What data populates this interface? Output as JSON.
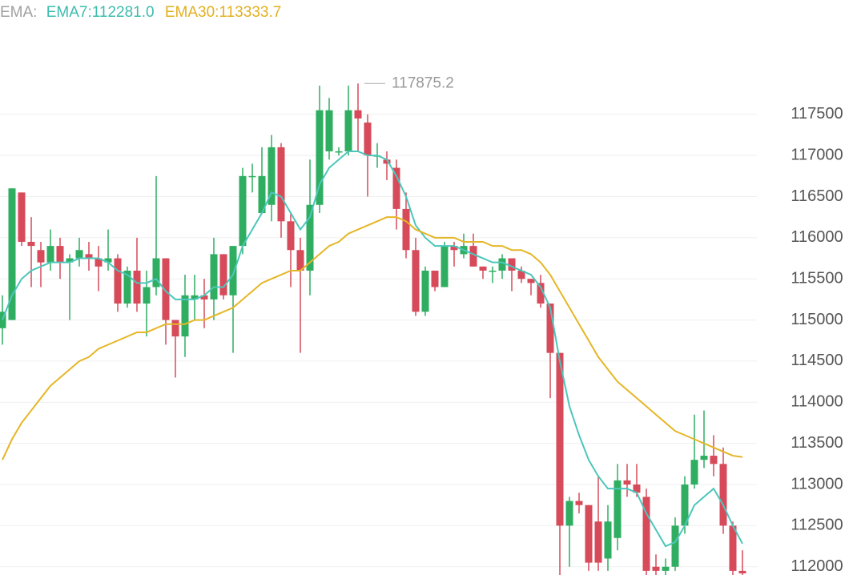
{
  "chart_data": {
    "type": "candlestick",
    "legend": {
      "label": "EMA:",
      "items": [
        "EMA7:112281.0",
        "EMA30:113333.7"
      ]
    },
    "up_color": "#2fae62",
    "down_color": "#d64a5a",
    "open": [
      114900,
      115000,
      116550,
      115950,
      115850,
      115700,
      115900,
      115700,
      115750,
      115800,
      115750,
      115700,
      115750,
      115200,
      115600,
      115200,
      115400,
      115750,
      115000,
      114800,
      115250,
      115300,
      115250,
      115800,
      115300,
      115900,
      116750,
      116300,
      116400,
      117100,
      116200,
      115850,
      115600,
      116400,
      117050,
      117050,
      117050,
      117550,
      117400,
      117000,
      116950,
      116850,
      116350,
      115850,
      115100,
      115600,
      115400,
      115900,
      115800,
      115900,
      115650,
      115600,
      115600,
      115750,
      115600,
      115500,
      115450,
      115200,
      114600,
      112500,
      112800,
      112750,
      112550,
      112100,
      112350,
      113050,
      113000,
      112850,
      112000,
      111950,
      112000,
      112500,
      113000,
      113300,
      113350,
      113250,
      112500,
      111950
    ],
    "high": [
      115300,
      116600,
      116550,
      116250,
      115950,
      116100,
      116000,
      115800,
      116000,
      115950,
      115900,
      116100,
      115800,
      115650,
      116000,
      115600,
      116750,
      115750,
      115000,
      115550,
      115550,
      115500,
      116000,
      115800,
      115900,
      116850,
      116900,
      117100,
      117250,
      117150,
      116300,
      116000,
      116950,
      117850,
      117700,
      117100,
      117850,
      117875.2,
      117500,
      117150,
      117050,
      116950,
      116550,
      116000,
      115650,
      115600,
      115950,
      115950,
      116050,
      116050,
      115650,
      115650,
      115800,
      115750,
      115650,
      115500,
      115550,
      115200,
      114600,
      112850,
      112900,
      112750,
      113100,
      112750,
      113250,
      113250,
      113250,
      112950,
      112150,
      112100,
      112600,
      113100,
      113850,
      113900,
      113600,
      113450,
      112550,
      112200
    ],
    "low": [
      114700,
      115000,
      115900,
      115400,
      115400,
      115600,
      115500,
      115000,
      115650,
      115600,
      115350,
      115600,
      115100,
      115150,
      115100,
      114800,
      115300,
      114700,
      114300,
      114550,
      115000,
      114900,
      115000,
      115250,
      114600,
      115800,
      116550,
      116300,
      116200,
      116000,
      115400,
      114600,
      115300,
      116300,
      116950,
      117000,
      117000,
      117050,
      116500,
      116850,
      116700,
      116100,
      115750,
      115050,
      115050,
      115350,
      115400,
      115650,
      115750,
      115650,
      115500,
      115450,
      115500,
      115350,
      115450,
      115300,
      115150,
      114050,
      111900,
      112000,
      112650,
      111950,
      111950,
      111950,
      112200,
      112850,
      112850,
      111900,
      111900,
      111900,
      111950,
      112400,
      112950,
      113200,
      113100,
      112400,
      111900,
      111900
    ],
    "close": [
      115100,
      116600,
      115950,
      115900,
      115700,
      115900,
      115700,
      115750,
      115850,
      115750,
      115650,
      115750,
      115200,
      115600,
      115200,
      115400,
      115750,
      115000,
      114800,
      115300,
      115300,
      115250,
      115800,
      115300,
      115900,
      116750,
      116750,
      116750,
      117100,
      116200,
      115850,
      115600,
      116400,
      117550,
      117550,
      117050,
      117550,
      117450,
      117000,
      117000,
      116900,
      116350,
      115850,
      115100,
      115600,
      115400,
      115900,
      115850,
      115900,
      115650,
      115600,
      115600,
      115750,
      115600,
      115500,
      115450,
      115200,
      114600,
      112500,
      112800,
      112750,
      112050,
      112050,
      112550,
      113050,
      113000,
      112900,
      111950,
      111950,
      112000,
      112500,
      113000,
      113300,
      113350,
      113250,
      112500,
      111950,
      111920
    ],
    "series": [
      {
        "color": "#4cc6bb",
        "values": [
          115000,
          115300,
          115500,
          115600,
          115650,
          115700,
          115700,
          115700,
          115750,
          115750,
          115750,
          115700,
          115600,
          115550,
          115450,
          115450,
          115500,
          115350,
          115250,
          115250,
          115250,
          115300,
          115400,
          115400,
          115550,
          115900,
          116100,
          116300,
          116550,
          116500,
          116300,
          116100,
          116250,
          116650,
          116850,
          116950,
          117050,
          117050,
          117000,
          117000,
          116950,
          116750,
          116500,
          116150,
          116000,
          115900,
          115900,
          115900,
          115850,
          115800,
          115750,
          115700,
          115700,
          115650,
          115600,
          115550,
          115400,
          115150,
          114500,
          113950,
          113600,
          113300,
          113100,
          112950,
          112950,
          112950,
          112900,
          112650,
          112450,
          112250,
          112300,
          112500,
          112750,
          112850,
          112950,
          112750,
          112500,
          112281
        ]
      },
      {
        "color": "#e5b626",
        "values": [
          113300,
          113550,
          113750,
          113900,
          114050,
          114200,
          114300,
          114400,
          114500,
          114550,
          114650,
          114700,
          114750,
          114800,
          114850,
          114850,
          114900,
          114950,
          114950,
          114950,
          115000,
          115000,
          115050,
          115100,
          115150,
          115250,
          115350,
          115450,
          115500,
          115550,
          115600,
          115600,
          115700,
          115800,
          115900,
          115950,
          116050,
          116100,
          116150,
          116200,
          116250,
          116250,
          116200,
          116100,
          116050,
          116000,
          116000,
          116000,
          115950,
          115950,
          115950,
          115900,
          115900,
          115850,
          115850,
          115800,
          115700,
          115550,
          115350,
          115150,
          114950,
          114750,
          114550,
          114400,
          114250,
          114150,
          114050,
          113950,
          113850,
          113750,
          113650,
          113600,
          113550,
          113500,
          113450,
          113400,
          113350,
          113333.7
        ]
      }
    ],
    "annotation_high": 117875.2,
    "ylim": [
      111900,
      118890
    ],
    "yticks": [
      112000,
      112500,
      113000,
      113500,
      114000,
      114500,
      115000,
      115500,
      116000,
      116500,
      117000,
      117500
    ],
    "grid": true
  }
}
